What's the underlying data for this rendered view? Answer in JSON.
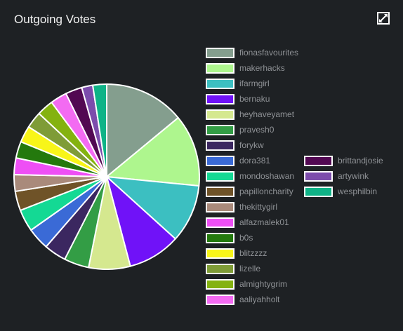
{
  "panel": {
    "title": "Outgoing Votes",
    "expand_icon": "expand-icon"
  },
  "chart_data": {
    "type": "pie",
    "title": "Outgoing Votes",
    "slices": [
      {
        "label": "fionasfavourites",
        "value": 14.5,
        "color": "#849e8e"
      },
      {
        "label": "makerhacks",
        "value": 13.0,
        "color": "#aef68e"
      },
      {
        "label": "ifarmgirl",
        "value": 10.5,
        "color": "#3cbfc1"
      },
      {
        "label": "bernaku",
        "value": 9.5,
        "color": "#7012f8"
      },
      {
        "label": "heyhaveyamet",
        "value": 7.5,
        "color": "#d5e88f"
      },
      {
        "label": "pravesh0",
        "value": 4.5,
        "color": "#339d45"
      },
      {
        "label": "forykw",
        "value": 4.0,
        "color": "#3b2760"
      },
      {
        "label": "dora381",
        "value": 4.0,
        "color": "#3a6ad6"
      },
      {
        "label": "mondoshawan",
        "value": 4.0,
        "color": "#14d994"
      },
      {
        "label": "papilloncharity",
        "value": 3.5,
        "color": "#6f5328"
      },
      {
        "label": "thekittygirl",
        "value": 3.0,
        "color": "#a98a7b"
      },
      {
        "label": "alfazmalek01",
        "value": 3.0,
        "color": "#ee4ff5"
      },
      {
        "label": "b0s",
        "value": 3.0,
        "color": "#24790d"
      },
      {
        "label": "blitzzzz",
        "value": 3.0,
        "color": "#f8f519"
      },
      {
        "label": "lizelle",
        "value": 3.0,
        "color": "#7f9c37"
      },
      {
        "label": "almightygrim",
        "value": 3.0,
        "color": "#84b210"
      },
      {
        "label": "aaliyahholt",
        "value": 3.0,
        "color": "#f36bf2"
      },
      {
        "label": "brittandjosie",
        "value": 3.0,
        "color": "#520852"
      },
      {
        "label": "artywink",
        "value": 2.0,
        "color": "#7c4cac"
      },
      {
        "label": "wesphilbin",
        "value": 2.5,
        "color": "#0fb387"
      }
    ]
  }
}
